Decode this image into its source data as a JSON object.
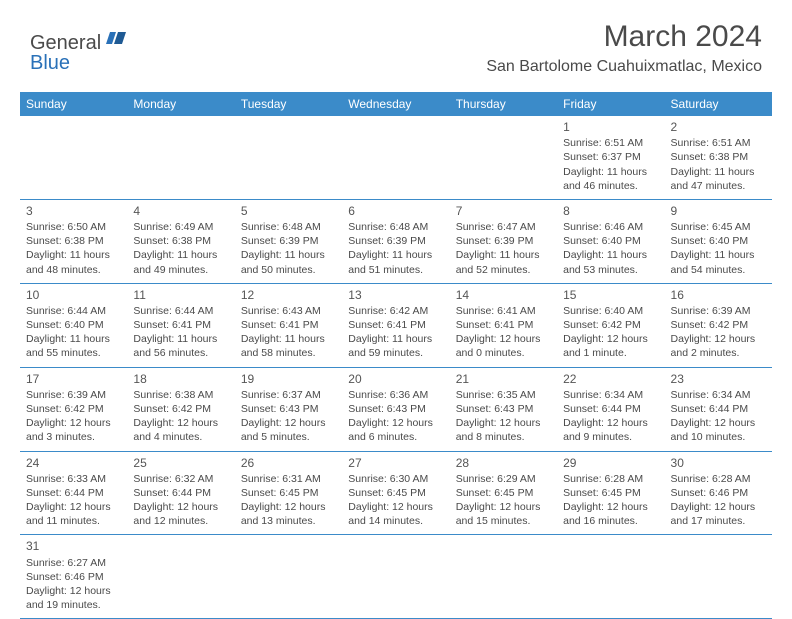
{
  "logo": {
    "general": "General",
    "blue": "Blue"
  },
  "title": "March 2024",
  "location": "San Bartolome Cuahuixmatlac, Mexico",
  "colors": {
    "header_bg": "#3b8bc9",
    "header_text": "#ffffff",
    "body_text": "#4a4a4a",
    "rule": "#3b8bc9",
    "logo_blue": "#2a71b8"
  },
  "weekdays": [
    "Sunday",
    "Monday",
    "Tuesday",
    "Wednesday",
    "Thursday",
    "Friday",
    "Saturday"
  ],
  "weeks": [
    [
      null,
      null,
      null,
      null,
      null,
      {
        "n": "1",
        "sr": "Sunrise: 6:51 AM",
        "ss": "Sunset: 6:37 PM",
        "dl": "Daylight: 11 hours and 46 minutes."
      },
      {
        "n": "2",
        "sr": "Sunrise: 6:51 AM",
        "ss": "Sunset: 6:38 PM",
        "dl": "Daylight: 11 hours and 47 minutes."
      }
    ],
    [
      {
        "n": "3",
        "sr": "Sunrise: 6:50 AM",
        "ss": "Sunset: 6:38 PM",
        "dl": "Daylight: 11 hours and 48 minutes."
      },
      {
        "n": "4",
        "sr": "Sunrise: 6:49 AM",
        "ss": "Sunset: 6:38 PM",
        "dl": "Daylight: 11 hours and 49 minutes."
      },
      {
        "n": "5",
        "sr": "Sunrise: 6:48 AM",
        "ss": "Sunset: 6:39 PM",
        "dl": "Daylight: 11 hours and 50 minutes."
      },
      {
        "n": "6",
        "sr": "Sunrise: 6:48 AM",
        "ss": "Sunset: 6:39 PM",
        "dl": "Daylight: 11 hours and 51 minutes."
      },
      {
        "n": "7",
        "sr": "Sunrise: 6:47 AM",
        "ss": "Sunset: 6:39 PM",
        "dl": "Daylight: 11 hours and 52 minutes."
      },
      {
        "n": "8",
        "sr": "Sunrise: 6:46 AM",
        "ss": "Sunset: 6:40 PM",
        "dl": "Daylight: 11 hours and 53 minutes."
      },
      {
        "n": "9",
        "sr": "Sunrise: 6:45 AM",
        "ss": "Sunset: 6:40 PM",
        "dl": "Daylight: 11 hours and 54 minutes."
      }
    ],
    [
      {
        "n": "10",
        "sr": "Sunrise: 6:44 AM",
        "ss": "Sunset: 6:40 PM",
        "dl": "Daylight: 11 hours and 55 minutes."
      },
      {
        "n": "11",
        "sr": "Sunrise: 6:44 AM",
        "ss": "Sunset: 6:41 PM",
        "dl": "Daylight: 11 hours and 56 minutes."
      },
      {
        "n": "12",
        "sr": "Sunrise: 6:43 AM",
        "ss": "Sunset: 6:41 PM",
        "dl": "Daylight: 11 hours and 58 minutes."
      },
      {
        "n": "13",
        "sr": "Sunrise: 6:42 AM",
        "ss": "Sunset: 6:41 PM",
        "dl": "Daylight: 11 hours and 59 minutes."
      },
      {
        "n": "14",
        "sr": "Sunrise: 6:41 AM",
        "ss": "Sunset: 6:41 PM",
        "dl": "Daylight: 12 hours and 0 minutes."
      },
      {
        "n": "15",
        "sr": "Sunrise: 6:40 AM",
        "ss": "Sunset: 6:42 PM",
        "dl": "Daylight: 12 hours and 1 minute."
      },
      {
        "n": "16",
        "sr": "Sunrise: 6:39 AM",
        "ss": "Sunset: 6:42 PM",
        "dl": "Daylight: 12 hours and 2 minutes."
      }
    ],
    [
      {
        "n": "17",
        "sr": "Sunrise: 6:39 AM",
        "ss": "Sunset: 6:42 PM",
        "dl": "Daylight: 12 hours and 3 minutes."
      },
      {
        "n": "18",
        "sr": "Sunrise: 6:38 AM",
        "ss": "Sunset: 6:42 PM",
        "dl": "Daylight: 12 hours and 4 minutes."
      },
      {
        "n": "19",
        "sr": "Sunrise: 6:37 AM",
        "ss": "Sunset: 6:43 PM",
        "dl": "Daylight: 12 hours and 5 minutes."
      },
      {
        "n": "20",
        "sr": "Sunrise: 6:36 AM",
        "ss": "Sunset: 6:43 PM",
        "dl": "Daylight: 12 hours and 6 minutes."
      },
      {
        "n": "21",
        "sr": "Sunrise: 6:35 AM",
        "ss": "Sunset: 6:43 PM",
        "dl": "Daylight: 12 hours and 8 minutes."
      },
      {
        "n": "22",
        "sr": "Sunrise: 6:34 AM",
        "ss": "Sunset: 6:44 PM",
        "dl": "Daylight: 12 hours and 9 minutes."
      },
      {
        "n": "23",
        "sr": "Sunrise: 6:34 AM",
        "ss": "Sunset: 6:44 PM",
        "dl": "Daylight: 12 hours and 10 minutes."
      }
    ],
    [
      {
        "n": "24",
        "sr": "Sunrise: 6:33 AM",
        "ss": "Sunset: 6:44 PM",
        "dl": "Daylight: 12 hours and 11 minutes."
      },
      {
        "n": "25",
        "sr": "Sunrise: 6:32 AM",
        "ss": "Sunset: 6:44 PM",
        "dl": "Daylight: 12 hours and 12 minutes."
      },
      {
        "n": "26",
        "sr": "Sunrise: 6:31 AM",
        "ss": "Sunset: 6:45 PM",
        "dl": "Daylight: 12 hours and 13 minutes."
      },
      {
        "n": "27",
        "sr": "Sunrise: 6:30 AM",
        "ss": "Sunset: 6:45 PM",
        "dl": "Daylight: 12 hours and 14 minutes."
      },
      {
        "n": "28",
        "sr": "Sunrise: 6:29 AM",
        "ss": "Sunset: 6:45 PM",
        "dl": "Daylight: 12 hours and 15 minutes."
      },
      {
        "n": "29",
        "sr": "Sunrise: 6:28 AM",
        "ss": "Sunset: 6:45 PM",
        "dl": "Daylight: 12 hours and 16 minutes."
      },
      {
        "n": "30",
        "sr": "Sunrise: 6:28 AM",
        "ss": "Sunset: 6:46 PM",
        "dl": "Daylight: 12 hours and 17 minutes."
      }
    ],
    [
      {
        "n": "31",
        "sr": "Sunrise: 6:27 AM",
        "ss": "Sunset: 6:46 PM",
        "dl": "Daylight: 12 hours and 19 minutes."
      },
      null,
      null,
      null,
      null,
      null,
      null
    ]
  ]
}
